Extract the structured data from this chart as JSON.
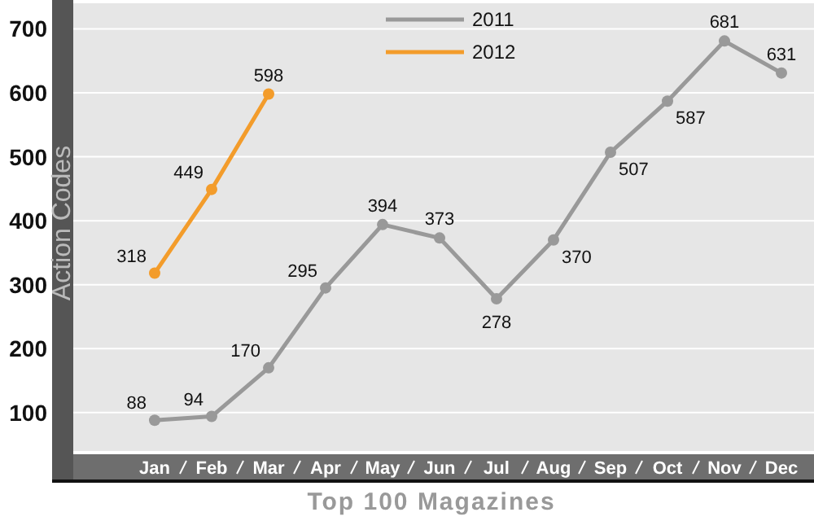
{
  "chart_data": {
    "type": "line",
    "title": "Top 100 Magazines",
    "ylabel": "Action Codes",
    "categories": [
      "Jan",
      "Feb",
      "Mar",
      "Apr",
      "May",
      "Jun",
      "Jul",
      "Aug",
      "Sep",
      "Oct",
      "Nov",
      "Dec"
    ],
    "series": [
      {
        "name": "2011",
        "color": "#999999",
        "values": [
          88,
          94,
          170,
          295,
          394,
          373,
          278,
          370,
          507,
          587,
          681,
          631
        ]
      },
      {
        "name": "2012",
        "color": "#f39c2b",
        "values": [
          318,
          449,
          598,
          null,
          null,
          null,
          null,
          null,
          null,
          null,
          null,
          null
        ]
      }
    ],
    "ylim": [
      40,
      740
    ],
    "yticks": [
      100,
      200,
      300,
      400,
      500,
      600,
      700
    ],
    "grid": "y",
    "legend": "top",
    "marker": "circle",
    "line_style": "solid",
    "data_labels": true
  }
}
